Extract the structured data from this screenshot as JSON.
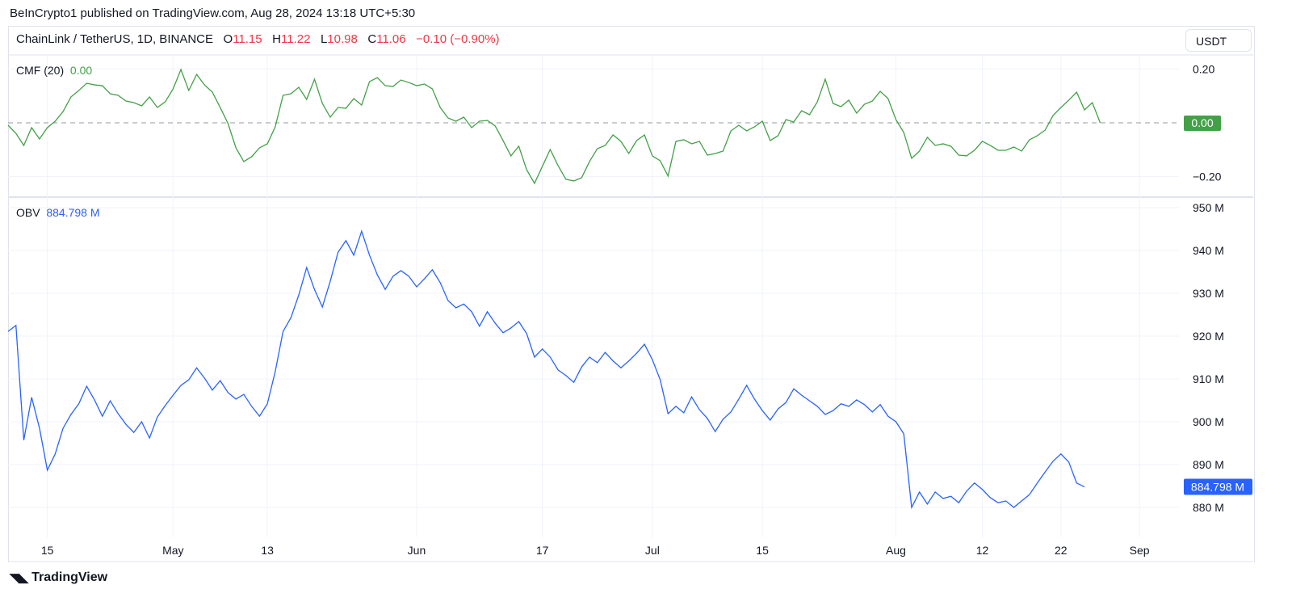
{
  "publisher": "BeInCrypto1 published on TradingView.com, Aug 28, 2024 13:18 UTC+5:30",
  "symbol": {
    "name": "ChainLink / TetherUS, 1D, BINANCE",
    "o_label": "O",
    "o": "11.15",
    "h_label": "H",
    "h": "11.22",
    "l_label": "L",
    "l": "10.98",
    "c_label": "C",
    "c": "11.06",
    "change": "−0.10 (−0.90%)"
  },
  "currency_button": "USDT",
  "footer_logo": "TradingView",
  "colors": {
    "cmf": "#43a047",
    "obv": "#2962ff",
    "down": "#f23645"
  },
  "chart_data": [
    {
      "type": "line",
      "title": "CMF (20)",
      "current_value": "0.00",
      "current_label": "0.00",
      "ylim": [
        -0.25,
        0.25
      ],
      "yticks": [
        "0.20",
        "−0.20"
      ],
      "ytick_values": [
        0.2,
        -0.2
      ],
      "zero_line": true,
      "x_start": "Apr 10",
      "x_end": "Aug 28",
      "values": [
        -0.009,
        -0.039,
        -0.084,
        -0.018,
        -0.06,
        -0.018,
        0.006,
        0.042,
        0.096,
        0.12,
        0.147,
        0.141,
        0.138,
        0.108,
        0.102,
        0.081,
        0.075,
        0.063,
        0.096,
        0.057,
        0.078,
        0.126,
        0.198,
        0.12,
        0.18,
        0.141,
        0.114,
        0.057,
        -0.003,
        -0.093,
        -0.144,
        -0.126,
        -0.093,
        -0.078,
        -0.015,
        0.102,
        0.108,
        0.132,
        0.087,
        0.162,
        0.072,
        0.021,
        0.057,
        0.054,
        0.09,
        0.066,
        0.153,
        0.168,
        0.138,
        0.135,
        0.159,
        0.15,
        0.138,
        0.144,
        0.126,
        0.057,
        0.018,
        0.006,
        0.021,
        -0.018,
        0.006,
        0.009,
        -0.012,
        -0.066,
        -0.123,
        -0.087,
        -0.174,
        -0.225,
        -0.162,
        -0.099,
        -0.159,
        -0.21,
        -0.216,
        -0.204,
        -0.144,
        -0.096,
        -0.084,
        -0.045,
        -0.069,
        -0.114,
        -0.066,
        -0.045,
        -0.123,
        -0.141,
        -0.198,
        -0.069,
        -0.063,
        -0.078,
        -0.069,
        -0.12,
        -0.114,
        -0.105,
        -0.03,
        -0.009,
        -0.03,
        -0.015,
        0.006,
        -0.066,
        -0.048,
        0.012,
        0.003,
        0.045,
        0.03,
        0.078,
        0.162,
        0.072,
        0.06,
        0.084,
        0.036,
        0.069,
        0.081,
        0.117,
        0.09,
        0.012,
        -0.036,
        -0.132,
        -0.105,
        -0.054,
        -0.084,
        -0.078,
        -0.087,
        -0.12,
        -0.123,
        -0.102,
        -0.069,
        -0.084,
        -0.102,
        -0.102,
        -0.09,
        -0.105,
        -0.063,
        -0.048,
        -0.027,
        0.027,
        0.057,
        0.084,
        0.114,
        0.048,
        0.075,
        0.0
      ]
    },
    {
      "type": "line",
      "title": "OBV",
      "current_value": "884.798 M",
      "current_label": "884.798 M",
      "ylim": [
        877,
        952
      ],
      "yticks": [
        "950 M",
        "940 M",
        "930 M",
        "920 M",
        "910 M",
        "900 M",
        "890 M",
        "880 M"
      ],
      "ytick_values": [
        950,
        940,
        930,
        920,
        910,
        900,
        890,
        880
      ],
      "unit": "M",
      "x_start": "Apr 10",
      "x_end": "Aug 28",
      "values": [
        921.1,
        922.5,
        895.7,
        905.7,
        898.5,
        888.7,
        892.5,
        898.5,
        901.7,
        904.2,
        908.3,
        905.1,
        901.3,
        904.9,
        901.9,
        899.4,
        897.5,
        900,
        896.2,
        901.1,
        903.8,
        906.2,
        908.5,
        909.8,
        912.6,
        910.2,
        907.4,
        909.6,
        906.8,
        905.3,
        906.4,
        903.6,
        901.3,
        904.2,
        911.7,
        921.1,
        924.3,
        929.6,
        936,
        930.9,
        926.8,
        932.8,
        939.6,
        942.3,
        938.9,
        944.5,
        938.9,
        934.3,
        930.9,
        934,
        935.3,
        934,
        931.5,
        933.4,
        935.5,
        932.5,
        928.3,
        926.6,
        927.5,
        925.7,
        922.3,
        925.7,
        923,
        920.8,
        921.9,
        923.4,
        920.6,
        915.1,
        917,
        915.1,
        912.1,
        910.8,
        909.2,
        912.8,
        915.1,
        913.8,
        916.2,
        914.2,
        912.6,
        914.2,
        916,
        918.1,
        914.5,
        909.8,
        901.9,
        903.6,
        902.1,
        905.8,
        902.8,
        900.8,
        897.7,
        900.6,
        902.3,
        905.3,
        908.5,
        905.3,
        902.6,
        900.4,
        903,
        904.5,
        907.7,
        906.2,
        904.9,
        903.6,
        901.7,
        902.6,
        904.2,
        903.6,
        905.1,
        904,
        902.3,
        904,
        901.3,
        900,
        897.2,
        880,
        883.6,
        880.8,
        883.6,
        882.1,
        882.6,
        881.1,
        883.8,
        885.7,
        884.2,
        882.3,
        881.1,
        881.5,
        880,
        881.5,
        883,
        885.7,
        888.3,
        890.8,
        892.5,
        890.6,
        885.7,
        884.8
      ]
    },
    {
      "type": "axis",
      "xticks": [
        "15",
        "May",
        "13",
        "Jun",
        "17",
        "Jul",
        "15",
        "Aug",
        "12",
        "22",
        "Sep"
      ],
      "xtick_days": [
        5,
        21,
        33,
        52,
        68,
        82,
        96,
        113,
        124,
        134,
        144
      ]
    }
  ]
}
